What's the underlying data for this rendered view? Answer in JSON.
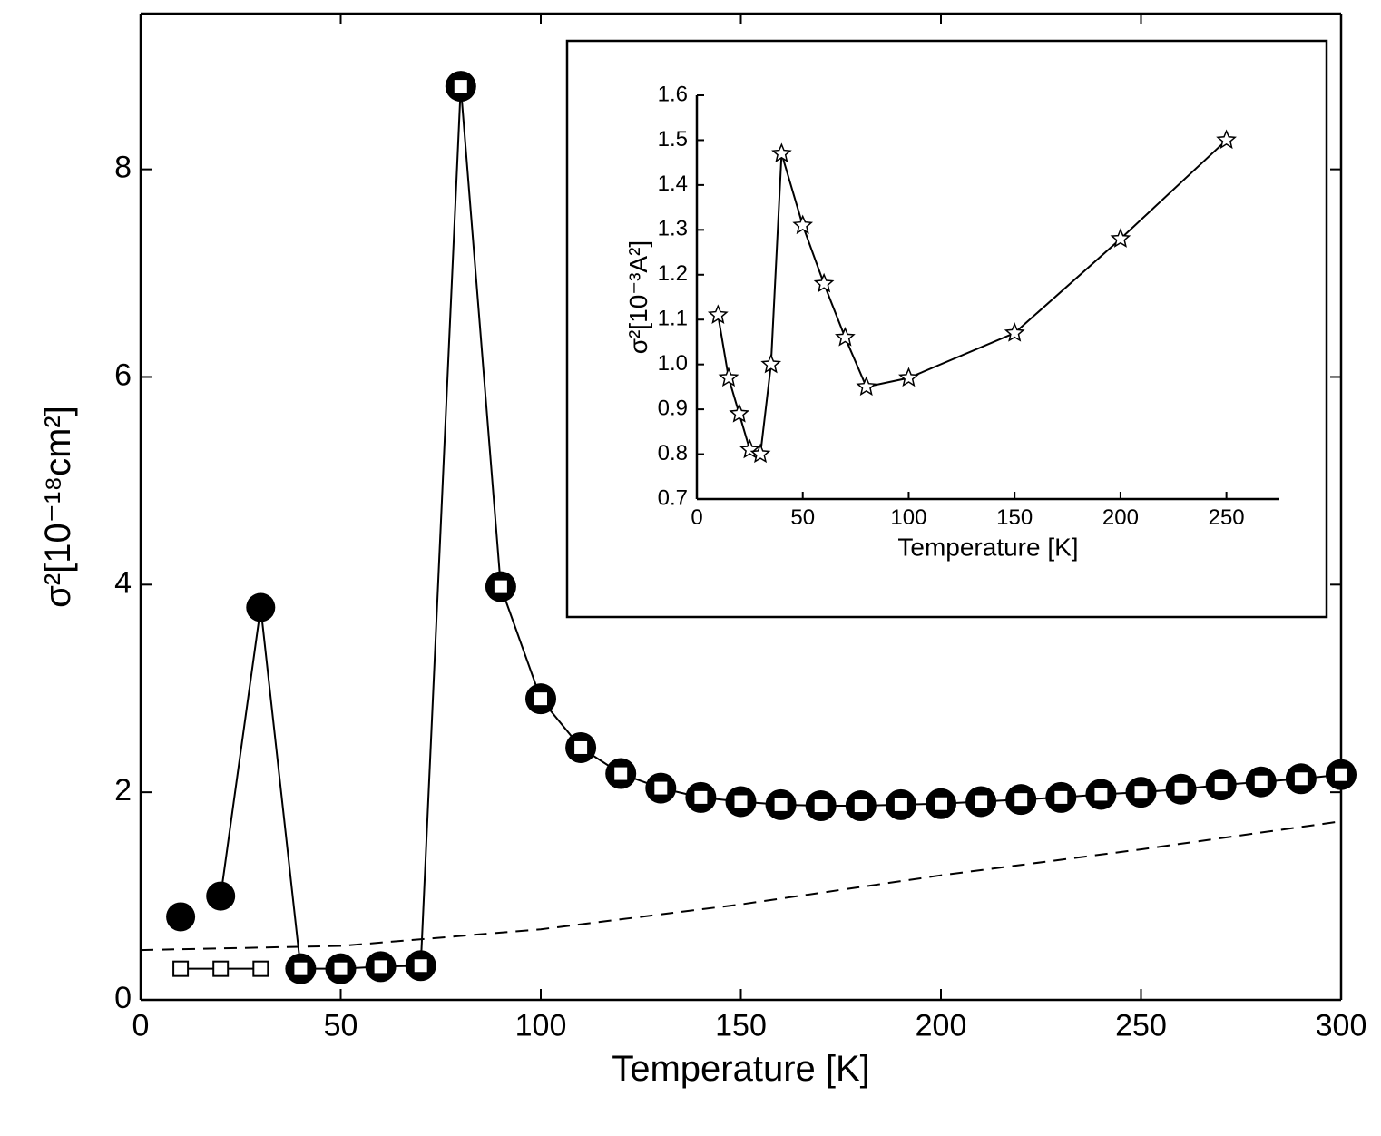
{
  "chart_data": [
    {
      "type": "line",
      "x_label": "Temperature [K]",
      "y_label": "σ²[10⁻¹⁸cm²]",
      "xlim": [
        0,
        300
      ],
      "xticks": [
        0,
        50,
        100,
        150,
        200,
        250,
        300
      ],
      "ylim": [
        0,
        9.5
      ],
      "yticks": [
        0,
        2,
        4,
        6,
        8
      ],
      "series": [
        {
          "color": "#000000",
          "marker": "filled-circle",
          "x": [
            10,
            20,
            30
          ],
          "values": [
            0.8,
            1.0,
            3.78
          ]
        },
        {
          "color": "#000000",
          "marker": "ring-square",
          "x": [
            40,
            50,
            60,
            70,
            80,
            90,
            100,
            110,
            120,
            130,
            140,
            150,
            160,
            170,
            180,
            190,
            200,
            210,
            220,
            230,
            240,
            250,
            260,
            270,
            280,
            290,
            300
          ],
          "values": [
            0.3,
            0.3,
            0.32,
            0.33,
            8.8,
            3.98,
            2.9,
            2.43,
            2.18,
            2.04,
            1.95,
            1.91,
            1.88,
            1.87,
            1.87,
            1.88,
            1.89,
            1.91,
            1.93,
            1.95,
            1.98,
            2.0,
            2.03,
            2.07,
            2.1,
            2.13,
            2.17
          ]
        },
        {
          "color": "#000000",
          "marker": "open-square",
          "x": [
            10,
            20,
            30
          ],
          "values": [
            0.3,
            0.3,
            0.3
          ]
        },
        {
          "color": "#000000",
          "style": "dashed",
          "x": [
            0,
            50,
            100,
            150,
            200,
            250,
            300
          ],
          "values": [
            0.48,
            0.52,
            0.68,
            0.92,
            1.2,
            1.45,
            1.72
          ]
        }
      ]
    },
    {
      "type": "line",
      "x_label": "Temperature [K]",
      "y_label": "σ²[10⁻³A²]",
      "xlim": [
        0,
        275
      ],
      "xticks": [
        0,
        50,
        100,
        150,
        200,
        250
      ],
      "ylim": [
        0.7,
        1.6
      ],
      "yticks": [
        {
          "value": 0.7,
          "label": "0.7"
        },
        {
          "value": 0.8,
          "label": "0.8"
        },
        {
          "value": 0.9,
          "label": "0.9"
        },
        {
          "value": 1.0,
          "label": "1.0"
        },
        {
          "value": 1.1,
          "label": "1.1"
        },
        {
          "value": 1.2,
          "label": "1.2"
        },
        {
          "value": 1.3,
          "label": "1.3"
        },
        {
          "value": 1.4,
          "label": "1.4"
        },
        {
          "value": 1.5,
          "label": "1.5"
        },
        {
          "value": 1.6,
          "label": "1.6"
        }
      ],
      "series": [
        {
          "color": "#000000",
          "marker": "star",
          "x": [
            10,
            15,
            20,
            25,
            30,
            35,
            40,
            50,
            60,
            70,
            80,
            100,
            150,
            200,
            250
          ],
          "values": [
            1.11,
            0.97,
            0.89,
            0.81,
            0.8,
            1.0,
            1.47,
            1.31,
            1.18,
            1.06,
            0.95,
            0.97,
            1.07,
            1.28,
            1.5
          ]
        }
      ]
    }
  ]
}
